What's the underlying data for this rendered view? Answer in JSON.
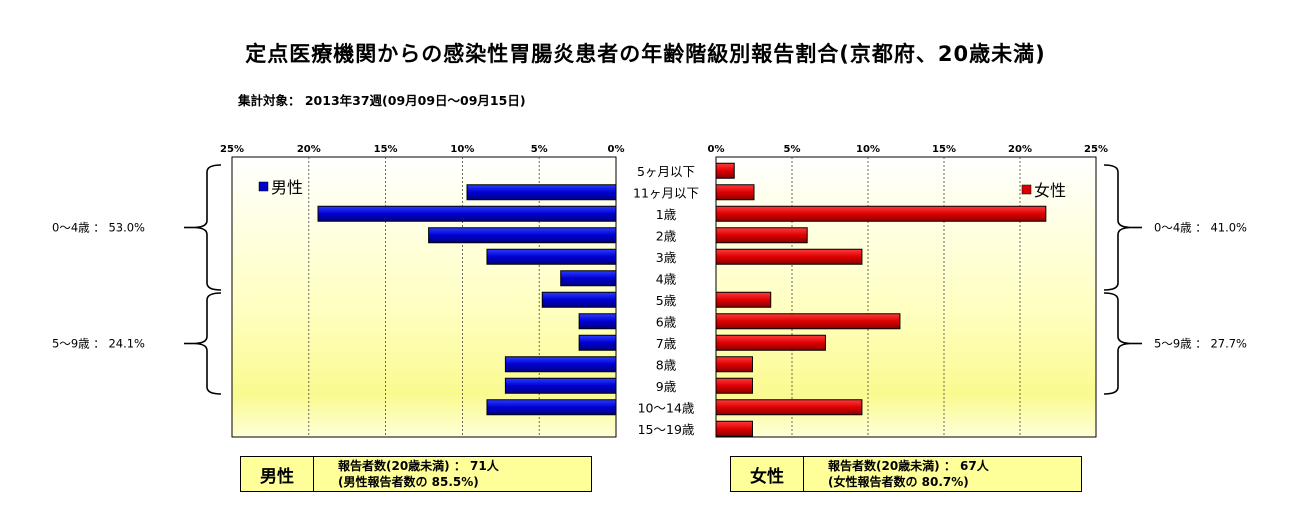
{
  "title": "定点医療機関からの感染性胃腸炎患者の年齢階級別報告割合(京都府、20歳未満)",
  "subtitle": "集計対象： 2013年37週(09月09日～09月15日)",
  "chart_data": {
    "type": "bar",
    "orientation": "horizontal-butterfly",
    "categories": [
      "5ヶ月以下",
      "11ヶ月以下",
      "1歳",
      "2歳",
      "3歳",
      "4歳",
      "5歳",
      "6歳",
      "7歳",
      "8歳",
      "9歳",
      "10～14歳",
      "15～19歳"
    ],
    "series": [
      {
        "name": "男性",
        "color": "#0000cc",
        "side": "left",
        "values": [
          0,
          9.7,
          19.4,
          12.2,
          8.4,
          3.6,
          4.8,
          2.4,
          2.4,
          7.2,
          7.2,
          8.4,
          0
        ]
      },
      {
        "name": "女性",
        "color": "#dd0000",
        "side": "right",
        "values": [
          1.2,
          2.5,
          21.7,
          6.0,
          9.6,
          0,
          3.6,
          12.1,
          7.2,
          2.4,
          2.4,
          9.6,
          2.4
        ]
      }
    ],
    "xlim": [
      0,
      25
    ],
    "ticks": [
      "25%",
      "20%",
      "15%",
      "10%",
      "5%",
      "0%"
    ],
    "ticks_right": [
      "0%",
      "5%",
      "10%",
      "15%",
      "20%",
      "25%"
    ],
    "grid": "vertical-dashed",
    "legend_position": "top-inside",
    "brackets": {
      "male": [
        "0～4歳 ： 53.0%",
        "5～9歳 ： 24.1%"
      ],
      "female": [
        "0～4歳 ： 41.0%",
        "5～9歳 ： 27.7%"
      ]
    }
  },
  "summary": {
    "male": {
      "label": "男性",
      "line1": "報告者数(20歳未満) ： 71人",
      "line2": "(男性報告者数の 85.5%)"
    },
    "female": {
      "label": "女性",
      "line1": "報告者数(20歳未満) ： 67人",
      "line2": "(女性報告者数の 80.7%)"
    }
  }
}
